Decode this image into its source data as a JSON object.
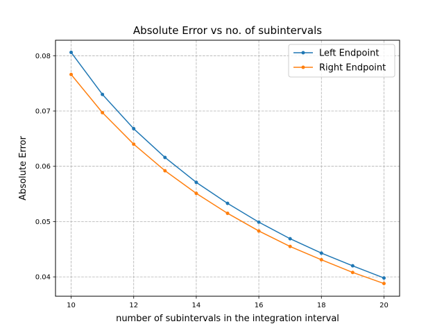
{
  "chart_data": {
    "type": "line",
    "title": "Absolute Error vs no. of subintervals",
    "xlabel": "number of subintervals in the integration interval",
    "ylabel": "Absolute Error",
    "xlim": [
      9.5,
      20.5
    ],
    "ylim": [
      0.0365,
      0.0828
    ],
    "xticks": [
      10,
      12,
      14,
      16,
      18,
      20
    ],
    "yticks": [
      0.04,
      0.05,
      0.06,
      0.07,
      0.08
    ],
    "ytick_labels": [
      "0.04",
      "0.05",
      "0.06",
      "0.07",
      "0.08"
    ],
    "grid": true,
    "legend_position": "top-right",
    "x": [
      10,
      11,
      12,
      13,
      14,
      15,
      16,
      17,
      18,
      19,
      20
    ],
    "series": [
      {
        "name": "Left Endpoint",
        "color": "#1f77b4",
        "values": [
          0.0806,
          0.073,
          0.0668,
          0.0616,
          0.0571,
          0.0533,
          0.0499,
          0.0469,
          0.0443,
          0.042,
          0.0398
        ]
      },
      {
        "name": "Right Endpoint",
        "color": "#ff7f0e",
        "values": [
          0.0766,
          0.0697,
          0.064,
          0.0592,
          0.0551,
          0.0515,
          0.0483,
          0.0455,
          0.0431,
          0.0408,
          0.0388
        ]
      }
    ]
  }
}
